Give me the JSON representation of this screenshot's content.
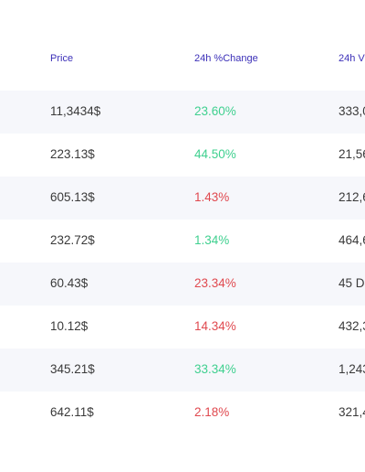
{
  "columns": {
    "price": "Price",
    "change": "24h %Change",
    "volume": "24h V"
  },
  "colors": {
    "header": "#3b2fb8",
    "positive": "#3fd08f",
    "negative": "#e0494f",
    "row_alt": "#f6f7fb"
  },
  "rows": [
    {
      "price": "11,3434$",
      "change": "23.60%",
      "trend": "positive",
      "volume": "333,0"
    },
    {
      "price": "223.13$",
      "change": "44.50%",
      "trend": "positive",
      "volume": "21,56"
    },
    {
      "price": "605.13$",
      "change": "1.43%",
      "trend": "negative",
      "volume": "212,6"
    },
    {
      "price": "232.72$",
      "change": "1.34%",
      "trend": "positive",
      "volume": "464,6"
    },
    {
      "price": "60.43$",
      "change": "23.34%",
      "trend": "negative",
      "volume": "45 D"
    },
    {
      "price": "10.12$",
      "change": "14.34%",
      "trend": "negative",
      "volume": "432,3"
    },
    {
      "price": "345.21$",
      "change": "33.34%",
      "trend": "positive",
      "volume": "1,243"
    },
    {
      "price": "642.11$",
      "change": "2.18%",
      "trend": "negative",
      "volume": "321,4"
    }
  ]
}
